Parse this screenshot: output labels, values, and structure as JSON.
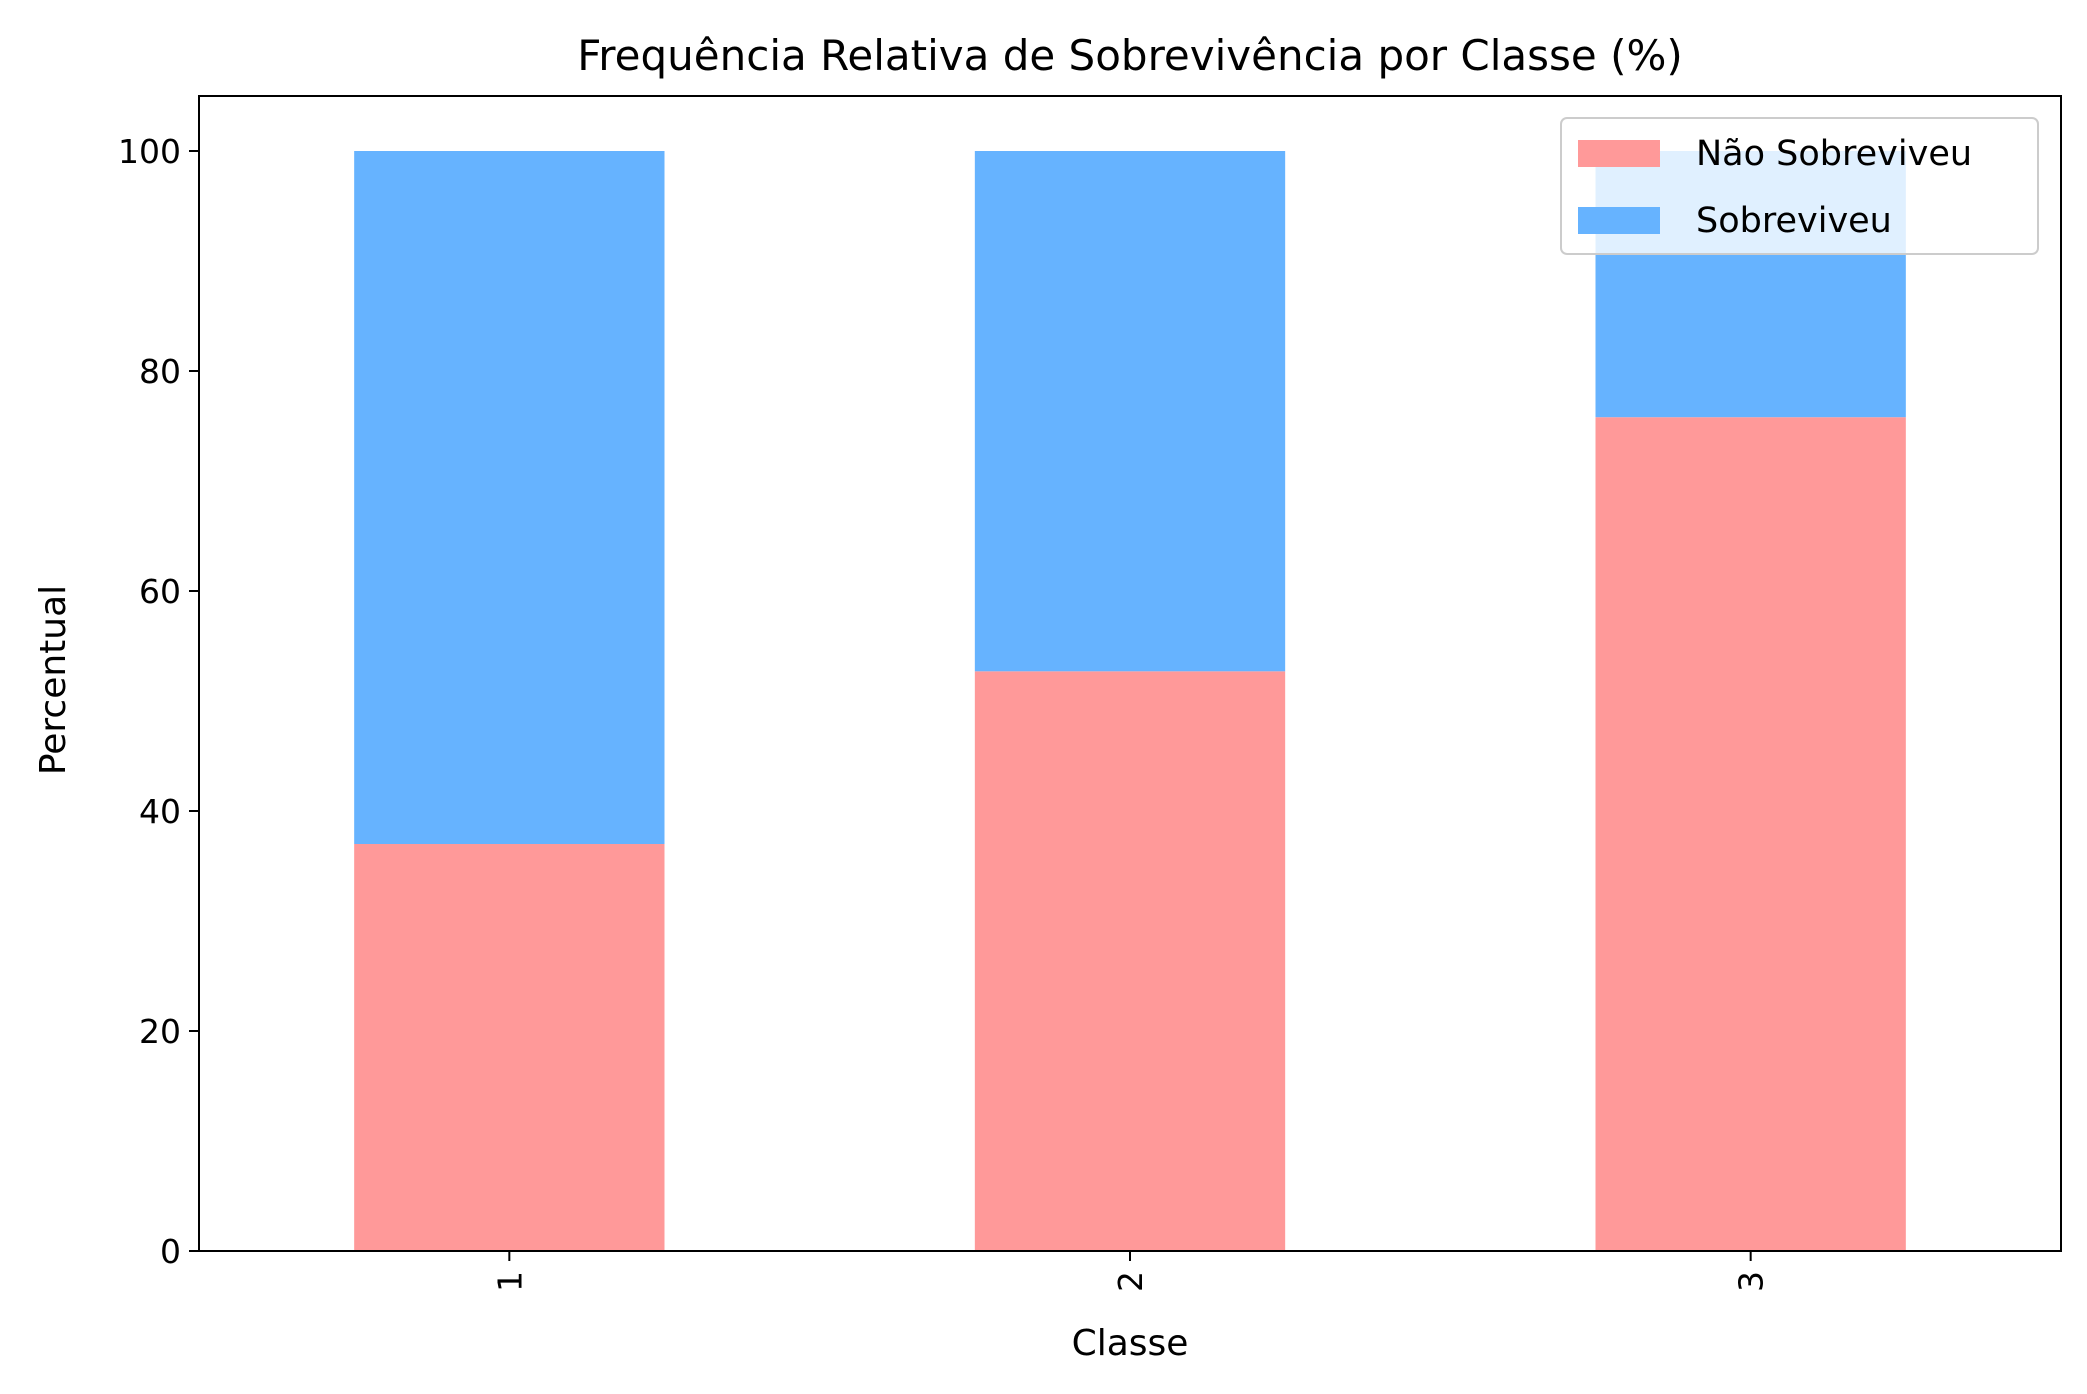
{
  "chart_data": {
    "type": "bar",
    "stacked": true,
    "title": "Frequência Relativa de Sobrevivência por Classe (%)",
    "xlabel": "Classe",
    "ylabel": "Percentual",
    "categories": [
      "1",
      "2",
      "3"
    ],
    "series": [
      {
        "name": "Não Sobreviveu",
        "color": "#ff9999",
        "values": [
          37.0,
          52.7,
          75.8
        ]
      },
      {
        "name": "Sobreviveu",
        "color": "#66b3ff",
        "values": [
          63.0,
          47.3,
          24.2
        ]
      }
    ],
    "ylim": [
      0,
      105
    ],
    "yticks": [
      0,
      20,
      40,
      60,
      80,
      100
    ],
    "xtick_rotation": 90,
    "grid": false,
    "legend_position": "top-right"
  }
}
